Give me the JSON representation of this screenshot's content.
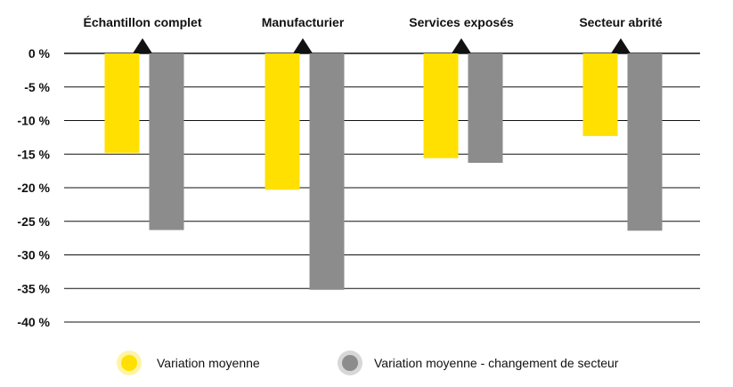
{
  "chart_data": {
    "type": "bar",
    "categories": [
      "Échantillon complet",
      "Manufacturier",
      "Services exposés",
      "Secteur abrité"
    ],
    "series": [
      {
        "name": "Variation moyenne",
        "values": [
          -14.8,
          -20.3,
          -15.6,
          -12.3
        ],
        "color": "#FFE000"
      },
      {
        "name": "Variation moyenne - changement de secteur",
        "values": [
          -26.3,
          -35.2,
          -16.3,
          -26.4
        ],
        "color": "#8C8C8C"
      }
    ],
    "yticks": [
      0,
      -5,
      -10,
      -15,
      -20,
      -25,
      -30,
      -35,
      -40
    ],
    "ytick_labels": [
      "0 %",
      "-5 %",
      "-10 %",
      "-15 %",
      "-20 %",
      "-25 %",
      "-30 %",
      "-35 %",
      "-40 %"
    ],
    "ylim": [
      -40,
      0
    ],
    "grid": true,
    "legend_position": "bottom",
    "title": "",
    "xlabel": "",
    "ylabel": ""
  }
}
